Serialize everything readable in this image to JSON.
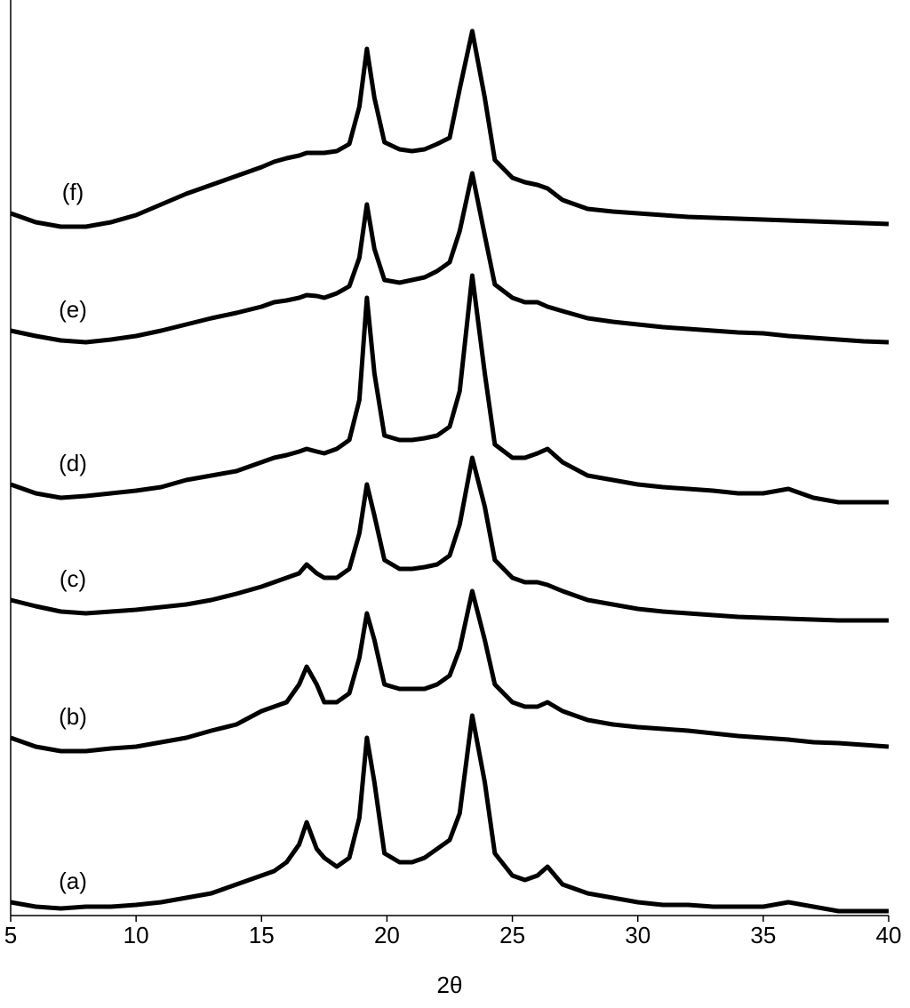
{
  "chart_data": {
    "type": "line",
    "xlabel": "2θ",
    "x": [
      5,
      6,
      7,
      8,
      9,
      10,
      11,
      12,
      13,
      14,
      15,
      15.5,
      16,
      16.5,
      16.8,
      17.2,
      17.5,
      18,
      18.5,
      18.9,
      19.2,
      19.5,
      19.9,
      20.5,
      21,
      21.5,
      22,
      22.5,
      22.9,
      23.4,
      23.9,
      24.3,
      25,
      25.5,
      26,
      26.4,
      27,
      28,
      29,
      30,
      31,
      32,
      33,
      34,
      35,
      36,
      37,
      38,
      39,
      40
    ],
    "series": [
      {
        "name": "(a)",
        "color": "#000000",
        "values": [
          15,
          10,
          8,
          10,
          10,
          12,
          15,
          20,
          25,
          35,
          45,
          50,
          60,
          80,
          105,
          75,
          65,
          55,
          65,
          110,
          200,
          150,
          70,
          60,
          60,
          65,
          75,
          85,
          115,
          225,
          150,
          70,
          45,
          40,
          45,
          55,
          35,
          25,
          20,
          15,
          12,
          12,
          10,
          10,
          10,
          15,
          10,
          5,
          5,
          5
        ]
      },
      {
        "name": "(b)",
        "color": "#000000",
        "values": [
          200,
          190,
          185,
          185,
          188,
          190,
          195,
          200,
          208,
          215,
          230,
          235,
          240,
          260,
          280,
          260,
          240,
          240,
          250,
          290,
          340,
          310,
          260,
          255,
          255,
          255,
          260,
          270,
          300,
          365,
          310,
          260,
          240,
          235,
          235,
          240,
          230,
          220,
          215,
          212,
          210,
          208,
          205,
          202,
          200,
          198,
          195,
          194,
          192,
          190
        ]
      },
      {
        "name": "(c)",
        "color": "#000000",
        "values": [
          355,
          348,
          342,
          340,
          342,
          344,
          347,
          350,
          355,
          362,
          370,
          375,
          380,
          385,
          395,
          385,
          380,
          380,
          390,
          430,
          485,
          450,
          400,
          390,
          390,
          392,
          395,
          405,
          440,
          515,
          460,
          400,
          380,
          375,
          375,
          372,
          365,
          355,
          350,
          345,
          342,
          340,
          338,
          336,
          335,
          334,
          333,
          332,
          332,
          332
        ]
      },
      {
        "name": "(d)",
        "color": "#000000",
        "values": [
          485,
          475,
          470,
          472,
          475,
          478,
          482,
          490,
          495,
          500,
          510,
          515,
          518,
          522,
          525,
          522,
          520,
          525,
          535,
          580,
          695,
          610,
          540,
          535,
          535,
          537,
          540,
          550,
          590,
          720,
          610,
          530,
          515,
          515,
          520,
          525,
          510,
          495,
          490,
          485,
          482,
          480,
          478,
          475,
          475,
          480,
          470,
          465,
          465,
          465
        ]
      },
      {
        "name": "(e)",
        "color": "#000000",
        "values": [
          658,
          652,
          647,
          645,
          648,
          652,
          658,
          665,
          672,
          678,
          685,
          690,
          692,
          695,
          698,
          697,
          695,
          700,
          708,
          740,
          800,
          750,
          715,
          712,
          715,
          718,
          725,
          735,
          770,
          835,
          765,
          710,
          695,
          690,
          690,
          685,
          680,
          672,
          668,
          665,
          662,
          660,
          658,
          656,
          655,
          652,
          650,
          648,
          646,
          645
        ]
      },
      {
        "name": "(f)",
        "color": "#000000",
        "values": [
          790,
          780,
          775,
          775,
          780,
          788,
          800,
          812,
          822,
          832,
          842,
          848,
          852,
          855,
          858,
          858,
          858,
          860,
          868,
          910,
          975,
          920,
          870,
          862,
          860,
          862,
          868,
          875,
          930,
          995,
          920,
          850,
          830,
          825,
          822,
          818,
          805,
          795,
          792,
          790,
          788,
          786,
          785,
          784,
          783,
          782,
          781,
          780,
          779,
          778
        ]
      }
    ],
    "xlim": [
      5,
      40
    ],
    "xticks": [
      5,
      10,
      15,
      20,
      25,
      30,
      35,
      40
    ],
    "ylim": [
      0,
      1030
    ]
  }
}
